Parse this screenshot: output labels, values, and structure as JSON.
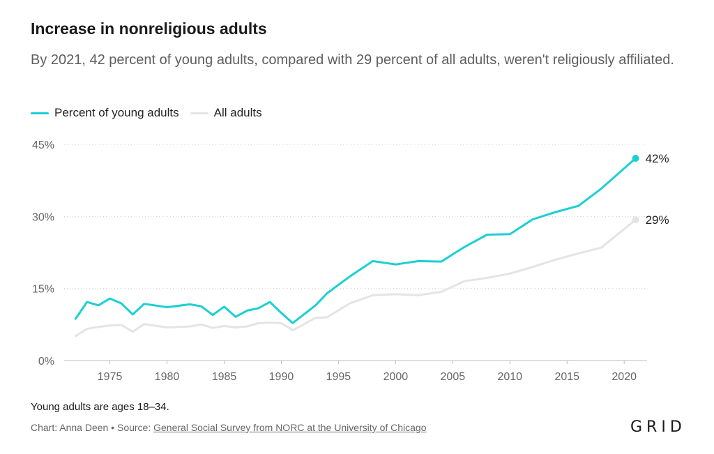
{
  "title": "Increase in nonreligious adults",
  "subtitle": "By 2021, 42 percent of young adults, compared with 29 percent of all adults, weren't religiously affiliated.",
  "note": "Young adults are ages 18–34.",
  "credit": {
    "prefix": "Chart: Anna Deen • Source: ",
    "link": "General Social Survey from NORC at the University of Chicago"
  },
  "logo": "GRID",
  "colors": {
    "young": "#1ccfd3",
    "all": "#e4e4e4",
    "grid": "#cfcfcf"
  },
  "chart_data": {
    "type": "line",
    "xlim": [
      1971,
      2022
    ],
    "ylim": [
      0,
      45
    ],
    "x_ticks": [
      {
        "value": 1975,
        "label": "1975"
      },
      {
        "value": 1980,
        "label": "1980"
      },
      {
        "value": 1985,
        "label": "1985"
      },
      {
        "value": 1990,
        "label": "1990"
      },
      {
        "value": 1995,
        "label": "1995"
      },
      {
        "value": 2000,
        "label": "2000"
      },
      {
        "value": 2005,
        "label": "2005"
      },
      {
        "value": 2010,
        "label": "2010"
      },
      {
        "value": 2015,
        "label": "2015"
      },
      {
        "value": 2020,
        "label": "2020"
      }
    ],
    "y_ticks": [
      {
        "value": 0,
        "label": "0%"
      },
      {
        "value": 15,
        "label": "15%"
      },
      {
        "value": 30,
        "label": "30%"
      },
      {
        "value": 45,
        "label": "45%"
      }
    ],
    "legend_position": "top-left",
    "grid": "horizontal dotted",
    "series": [
      {
        "name": "Percent of young adults",
        "color": "#1ccfd3",
        "end_label": "42%",
        "points": [
          [
            1972,
            8.7
          ],
          [
            1973,
            12.2
          ],
          [
            1974,
            11.5
          ],
          [
            1975,
            12.9
          ],
          [
            1976,
            11.9
          ],
          [
            1977,
            9.6
          ],
          [
            1978,
            11.8
          ],
          [
            1980,
            11.1
          ],
          [
            1982,
            11.7
          ],
          [
            1983,
            11.3
          ],
          [
            1984,
            9.5
          ],
          [
            1985,
            11.2
          ],
          [
            1986,
            9.1
          ],
          [
            1987,
            10.4
          ],
          [
            1988,
            10.9
          ],
          [
            1989,
            12.2
          ],
          [
            1990,
            9.9
          ],
          [
            1991,
            7.8
          ],
          [
            1993,
            11.5
          ],
          [
            1994,
            14.0
          ],
          [
            1996,
            17.5
          ],
          [
            1998,
            20.7
          ],
          [
            2000,
            20.0
          ],
          [
            2002,
            20.7
          ],
          [
            2004,
            20.6
          ],
          [
            2006,
            23.6
          ],
          [
            2008,
            26.2
          ],
          [
            2010,
            26.3
          ],
          [
            2012,
            29.4
          ],
          [
            2014,
            30.9
          ],
          [
            2016,
            32.2
          ],
          [
            2018,
            35.8
          ],
          [
            2021,
            42.1
          ]
        ]
      },
      {
        "name": "All adults",
        "color": "#e4e4e4",
        "end_label": "29%",
        "points": [
          [
            1972,
            5.1
          ],
          [
            1973,
            6.6
          ],
          [
            1974,
            7.0
          ],
          [
            1975,
            7.3
          ],
          [
            1976,
            7.4
          ],
          [
            1977,
            6.0
          ],
          [
            1978,
            7.6
          ],
          [
            1980,
            6.9
          ],
          [
            1982,
            7.1
          ],
          [
            1983,
            7.5
          ],
          [
            1984,
            6.8
          ],
          [
            1985,
            7.2
          ],
          [
            1986,
            6.9
          ],
          [
            1987,
            7.1
          ],
          [
            1988,
            7.8
          ],
          [
            1989,
            7.9
          ],
          [
            1990,
            7.8
          ],
          [
            1991,
            6.3
          ],
          [
            1993,
            8.9
          ],
          [
            1994,
            9.0
          ],
          [
            1996,
            11.9
          ],
          [
            1998,
            13.6
          ],
          [
            2000,
            13.8
          ],
          [
            2002,
            13.6
          ],
          [
            2004,
            14.3
          ],
          [
            2006,
            16.5
          ],
          [
            2008,
            17.2
          ],
          [
            2010,
            18.1
          ],
          [
            2012,
            19.5
          ],
          [
            2014,
            21.0
          ],
          [
            2016,
            22.3
          ],
          [
            2018,
            23.5
          ],
          [
            2021,
            29.3
          ]
        ]
      }
    ]
  }
}
